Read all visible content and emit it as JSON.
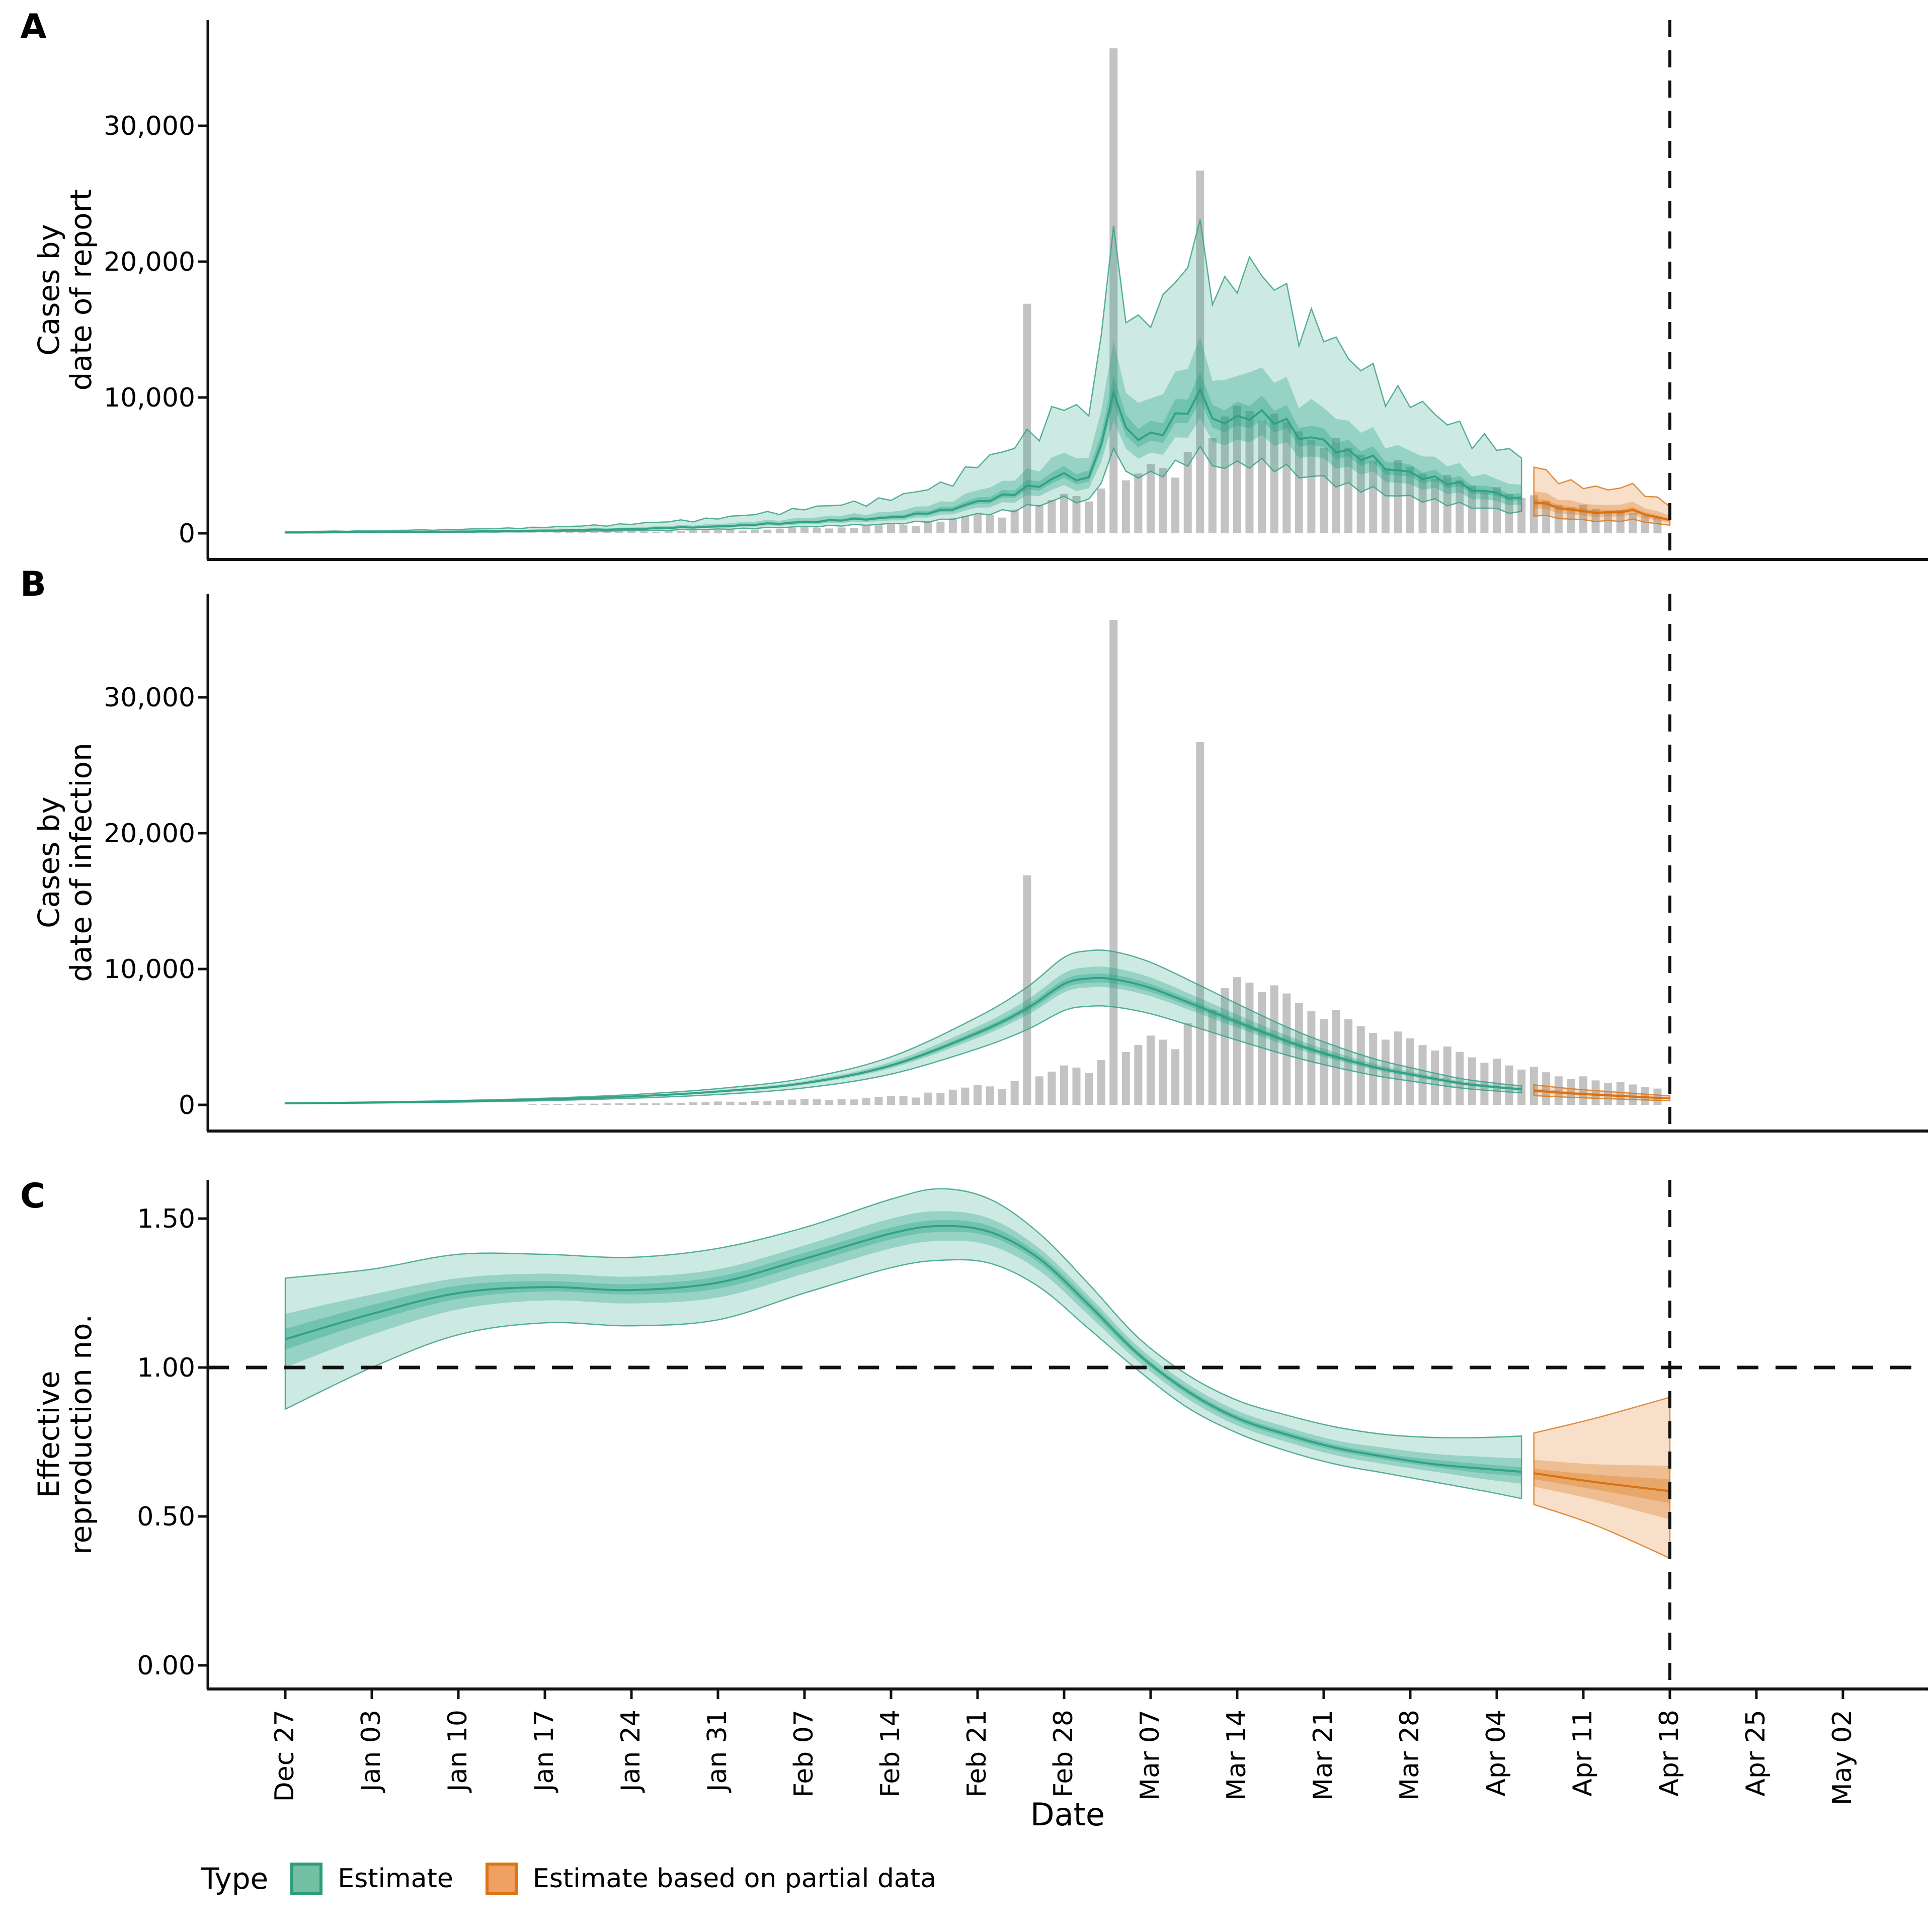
{
  "figure": {
    "kind": "epidemic nowcast / Rt estimation figure, three stacked panels",
    "background": "#ffffff"
  },
  "panels": [
    {
      "letter": "A",
      "y_title_line1": "Cases by",
      "y_title_line2": "date of report"
    },
    {
      "letter": "B",
      "y_title_line1": "Cases by",
      "y_title_line2": "date of infection"
    },
    {
      "letter": "C",
      "y_title_line1": "Effective",
      "y_title_line2": "reproduction no."
    }
  ],
  "x_axis": {
    "title": "Date",
    "tick_labels": [
      "Dec 27",
      "Jan 03",
      "Jan 10",
      "Jan 17",
      "Jan 24",
      "Jan 31",
      "Feb 07",
      "Feb 14",
      "Feb 21",
      "Feb 28",
      "Mar 07",
      "Mar 14",
      "Mar 21",
      "Mar 28",
      "Apr 04",
      "Apr 11",
      "Apr 18",
      "Apr 25",
      "May 02"
    ],
    "tick_every_days": 7,
    "start_label": "Dec 27",
    "forecast_boundary_label": "Apr 18",
    "forecast_boundary_day": 112
  },
  "legend": {
    "title": "Type",
    "items": [
      {
        "label": "Estimate",
        "fill": "#74c0a4",
        "border": "#2e9d77"
      },
      {
        "label": "Estimate based on partial data",
        "fill": "#efa063",
        "border": "#dc7414"
      }
    ]
  },
  "colors": {
    "bar_fill": "#c3c3c3",
    "green_base_rgb": [
      26,
      160,
      125
    ],
    "green_edge": "#3aa188",
    "green_median": "#2b9e80",
    "orange_base_rgb": [
      217,
      111,
      14
    ],
    "orange_edge": "#d97a1f",
    "orange_median": "#d96c08",
    "axis": "#111111",
    "dashed_line": "#111111",
    "band_alphas": [
      0.22,
      0.3,
      0.3
    ]
  },
  "chart_data": [
    {
      "panel": "A",
      "type": "bar+area",
      "ylabel": "Cases by date of report",
      "ylim": [
        0,
        38000
      ],
      "y_ticks": [
        {
          "label": "0",
          "value": 0
        },
        {
          "label": "10,000",
          "value": 10000
        },
        {
          "label": "20,000",
          "value": 20000
        },
        {
          "label": "30,000",
          "value": 30000
        }
      ],
      "bands": [
        "90%",
        "50%",
        "20%",
        "median"
      ],
      "bars": {
        "name": "reported cases (daily)",
        "start_day": 20,
        "values": [
          55,
          50,
          65,
          75,
          90,
          85,
          110,
          125,
          145,
          135,
          115,
          160,
          150,
          195,
          220,
          250,
          235,
          200,
          280,
          265,
          340,
          390,
          445,
          415,
          355,
          430,
          400,
          520,
          590,
          670,
          630,
          540,
          900,
          860,
          1120,
          1270,
          1450,
          1360,
          1160,
          1750,
          16900,
          2100,
          2450,
          2900,
          2750,
          2350,
          3300,
          35700,
          3900,
          4400,
          5100,
          4800,
          4100,
          6000,
          26700,
          7000,
          8600,
          9400,
          9000,
          8300,
          8800,
          8200,
          7500,
          6900,
          6300,
          7000,
          6300,
          5800,
          5300,
          4800,
          5400,
          4900,
          4400,
          4000,
          4300,
          3900,
          3500,
          3100,
          3400,
          2900,
          2600,
          2800,
          2400,
          2100,
          1900,
          2100,
          1800,
          1600,
          1700,
          1500,
          1300,
          1200
        ]
      },
      "estimate": {
        "style": "jagged",
        "median_anchors": [
          [
            0,
            55
          ],
          [
            7,
            85
          ],
          [
            14,
            130
          ],
          [
            21,
            200
          ],
          [
            28,
            310
          ],
          [
            35,
            500
          ],
          [
            42,
            820
          ],
          [
            49,
            1150
          ],
          [
            53,
            1600
          ],
          [
            56,
            2300
          ],
          [
            59,
            2900
          ],
          [
            61,
            3600
          ],
          [
            63,
            4300
          ],
          [
            65,
            3900
          ],
          [
            67,
            9600
          ],
          [
            69,
            6800
          ],
          [
            71,
            7600
          ],
          [
            74,
            9800
          ],
          [
            76,
            8000
          ],
          [
            78,
            8800
          ],
          [
            80,
            8300
          ],
          [
            82,
            7300
          ],
          [
            84,
            6700
          ],
          [
            86,
            5800
          ],
          [
            88,
            5300
          ],
          [
            90,
            4600
          ],
          [
            92,
            4200
          ],
          [
            94,
            3700
          ],
          [
            96,
            3300
          ],
          [
            98,
            2900
          ],
          [
            100,
            2500
          ]
        ],
        "ci_factors": {
          "u90": 1.95,
          "l90": 0.62,
          "u50": 1.32,
          "l50": 0.8,
          "u20": 1.12,
          "l20": 0.92
        },
        "daily_variation": {
          "median": [
            0.03,
            -0.05,
            0.06,
            -0.03,
            0.08,
            -0.05,
            0.01
          ],
          "upper": [
            0.3,
            0.05,
            0.5,
            0.12,
            0.62,
            0.18,
            0.35
          ],
          "upper_scale": 0.4,
          "wiggle_scale": 1.0
        }
      },
      "partial": {
        "style": "jagged",
        "median_anchors": [
          [
            101,
            2300
          ],
          [
            103,
            1900
          ],
          [
            105,
            1600
          ],
          [
            107,
            1500
          ],
          [
            109,
            1650
          ],
          [
            112,
            950
          ]
        ],
        "ci_factors": {
          "u90": 1.95,
          "l90": 0.62,
          "u50": 1.32,
          "l50": 0.8,
          "u20": 1.12,
          "l20": 0.92
        },
        "daily_variation": {
          "median": [
            0.03,
            -0.05,
            0.06,
            -0.03,
            0.08,
            -0.05,
            0.01
          ],
          "upper": [
            0.3,
            0.05,
            0.5,
            0.12,
            0.62,
            0.18,
            0.35
          ],
          "upper_scale": 0.3,
          "wiggle_scale": 0.6
        }
      }
    },
    {
      "panel": "B",
      "type": "bar+area",
      "ylabel": "Cases by date of infection",
      "ylim": [
        0,
        38000
      ],
      "y_ticks": [
        {
          "label": "0",
          "value": 0
        },
        {
          "label": "10,000",
          "value": 10000
        },
        {
          "label": "20,000",
          "value": 20000
        },
        {
          "label": "30,000",
          "value": 30000
        }
      ],
      "bands": [
        "90%",
        "50%",
        "20%",
        "median"
      ],
      "bars": {
        "same_as_panel": "A"
      },
      "estimate": {
        "style": "smooth",
        "median_anchors": [
          [
            0,
            110
          ],
          [
            7,
            170
          ],
          [
            14,
            260
          ],
          [
            21,
            400
          ],
          [
            28,
            620
          ],
          [
            35,
            980
          ],
          [
            42,
            1600
          ],
          [
            49,
            2900
          ],
          [
            56,
            5300
          ],
          [
            60,
            7100
          ],
          [
            63,
            8900
          ],
          [
            65,
            9300
          ],
          [
            67,
            9250
          ],
          [
            70,
            8600
          ],
          [
            74,
            7200
          ],
          [
            77,
            6100
          ],
          [
            81,
            4700
          ],
          [
            84,
            3800
          ],
          [
            88,
            2800
          ],
          [
            91,
            2250
          ],
          [
            95,
            1600
          ],
          [
            98,
            1300
          ],
          [
            100,
            1150
          ]
        ],
        "ci_factors": {
          "u90": 1.22,
          "l90": 0.78,
          "u50": 1.09,
          "l50": 0.93,
          "u20": 1.035,
          "l20": 0.965
        }
      },
      "partial": {
        "style": "smooth",
        "median_anchors": [
          [
            101,
            1050
          ],
          [
            104,
            850
          ],
          [
            107,
            700
          ],
          [
            110,
            560
          ],
          [
            112,
            470
          ]
        ],
        "ci_factors": {
          "u90": 1.4,
          "l90": 0.65,
          "u50": 1.15,
          "l50": 0.88,
          "u20": 1.05,
          "l20": 0.95
        }
      }
    },
    {
      "panel": "C",
      "type": "area",
      "ylabel": "Effective reproduction no.",
      "ylim": [
        -0.08,
        1.66
      ],
      "y_ticks": [
        {
          "label": "0.00",
          "value": 0
        },
        {
          "label": "0.50",
          "value": 0.5
        },
        {
          "label": "1.00",
          "value": 1.0
        },
        {
          "label": "1.50",
          "value": 1.5
        }
      ],
      "hline": 1.0,
      "bands": [
        "90%",
        "50%",
        "20%",
        "median"
      ],
      "quantile_keys": [
        "day",
        "l90",
        "l50",
        "l20",
        "median",
        "u20",
        "u50",
        "u90"
      ],
      "estimate_quantiles": [
        [
          0,
          0.86,
          1.0,
          1.06,
          1.095,
          1.13,
          1.18,
          1.3
        ],
        [
          7,
          1.0,
          1.11,
          1.155,
          1.18,
          1.21,
          1.245,
          1.33
        ],
        [
          14,
          1.11,
          1.195,
          1.23,
          1.25,
          1.275,
          1.3,
          1.38
        ],
        [
          21,
          1.15,
          1.225,
          1.255,
          1.27,
          1.29,
          1.315,
          1.38
        ],
        [
          28,
          1.14,
          1.215,
          1.245,
          1.26,
          1.28,
          1.305,
          1.37
        ],
        [
          35,
          1.16,
          1.235,
          1.265,
          1.285,
          1.305,
          1.33,
          1.4
        ],
        [
          42,
          1.25,
          1.315,
          1.345,
          1.365,
          1.385,
          1.41,
          1.47
        ],
        [
          49,
          1.335,
          1.4,
          1.43,
          1.45,
          1.47,
          1.5,
          1.565
        ],
        [
          53,
          1.36,
          1.425,
          1.455,
          1.475,
          1.495,
          1.525,
          1.6
        ],
        [
          57,
          1.35,
          1.41,
          1.44,
          1.455,
          1.475,
          1.5,
          1.565
        ],
        [
          61,
          1.27,
          1.325,
          1.35,
          1.365,
          1.38,
          1.4,
          1.45
        ],
        [
          65,
          1.13,
          1.175,
          1.195,
          1.21,
          1.225,
          1.24,
          1.28
        ],
        [
          69,
          0.99,
          1.02,
          1.035,
          1.045,
          1.055,
          1.07,
          1.1
        ],
        [
          73,
          0.865,
          0.895,
          0.91,
          0.92,
          0.93,
          0.945,
          0.975
        ],
        [
          77,
          0.78,
          0.805,
          0.82,
          0.83,
          0.84,
          0.855,
          0.89
        ],
        [
          81,
          0.72,
          0.75,
          0.765,
          0.775,
          0.785,
          0.8,
          0.84
        ],
        [
          85,
          0.675,
          0.705,
          0.72,
          0.73,
          0.74,
          0.755,
          0.8
        ],
        [
          89,
          0.645,
          0.675,
          0.69,
          0.7,
          0.71,
          0.73,
          0.775
        ],
        [
          93,
          0.615,
          0.65,
          0.665,
          0.675,
          0.69,
          0.71,
          0.765
        ],
        [
          97,
          0.585,
          0.625,
          0.645,
          0.66,
          0.675,
          0.7,
          0.765
        ],
        [
          100,
          0.56,
          0.61,
          0.635,
          0.65,
          0.665,
          0.695,
          0.77
        ]
      ],
      "partial_quantiles": [
        [
          101,
          0.54,
          0.6,
          0.625,
          0.645,
          0.66,
          0.69,
          0.78
        ],
        [
          106,
          0.47,
          0.555,
          0.59,
          0.615,
          0.64,
          0.675,
          0.83
        ],
        [
          112,
          0.36,
          0.49,
          0.545,
          0.585,
          0.625,
          0.67,
          0.9
        ]
      ]
    }
  ]
}
